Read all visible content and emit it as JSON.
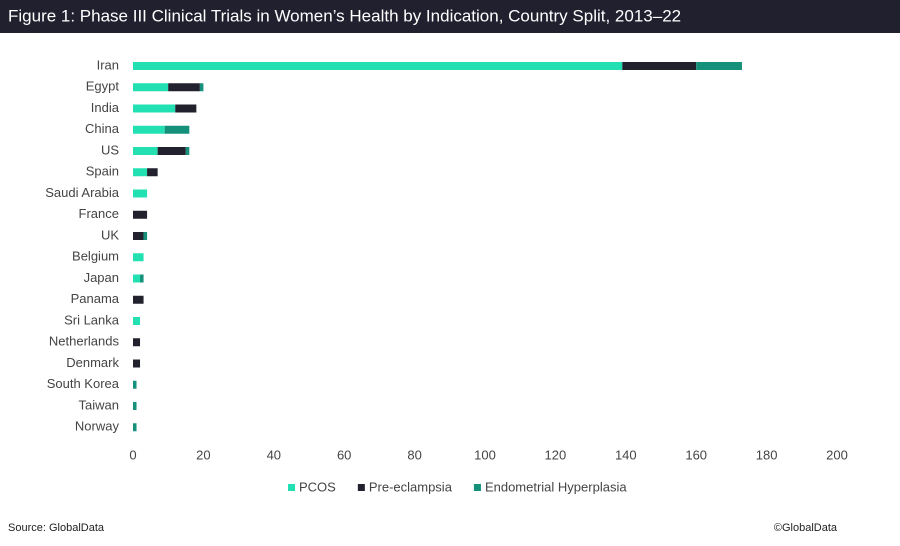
{
  "chart_data": {
    "type": "stacked-barh",
    "title": "Figure 1: Phase III Clinical Trials in Women’s Health by Indication, Country Split, 2013–22",
    "categories": [
      "Iran",
      "Egypt",
      "India",
      "China",
      "US",
      "Spain",
      "Saudi Arabia",
      "France",
      "UK",
      "Belgium",
      "Japan",
      "Panama",
      "Sri Lanka",
      "Netherlands",
      "Denmark",
      "South Korea",
      "Taiwan",
      "Norway"
    ],
    "series": [
      {
        "name": "PCOS",
        "color": "#23e0b2",
        "values": [
          139,
          10,
          12,
          9,
          7,
          4,
          4,
          0,
          0,
          3,
          2,
          0,
          2,
          0,
          0,
          0,
          0,
          0
        ]
      },
      {
        "name": "Pre-eclampsia",
        "color": "#22222f",
        "values": [
          21,
          9,
          6,
          0,
          8,
          3,
          0,
          4,
          3,
          0,
          0,
          3,
          0,
          2,
          2,
          0,
          0,
          0
        ]
      },
      {
        "name": "Endometrial Hyperplasia",
        "color": "#14907b",
        "values": [
          13,
          1,
          0,
          7,
          1,
          0,
          0,
          0,
          1,
          0,
          1,
          0,
          0,
          0,
          0,
          1,
          1,
          1
        ]
      }
    ],
    "xlim": [
      0,
      200
    ],
    "xticks": [
      0,
      20,
      40,
      60,
      80,
      100,
      120,
      140,
      160,
      180,
      200
    ],
    "grid": false,
    "legend": "bottom",
    "source": "Source: GlobalData",
    "copyright": "©GlobalData"
  }
}
